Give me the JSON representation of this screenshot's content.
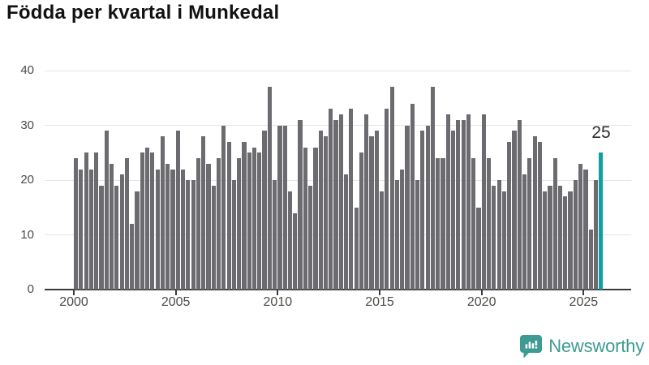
{
  "title": "Födda per kvartal i Munkedal",
  "annotation": {
    "label": "25"
  },
  "chart_data": {
    "type": "bar",
    "title": "Födda per kvartal i Munkedal",
    "x_start": "2000 Q1",
    "x_end": "2025 Q4",
    "x_frequency": "quarterly",
    "values": [
      24,
      22,
      25,
      22,
      25,
      19,
      29,
      23,
      19,
      21,
      24,
      12,
      18,
      25,
      26,
      25,
      22,
      28,
      23,
      22,
      29,
      22,
      20,
      20,
      24,
      28,
      23,
      19,
      24,
      30,
      27,
      20,
      24,
      27,
      25,
      26,
      25,
      29,
      37,
      20,
      30,
      30,
      18,
      14,
      31,
      26,
      19,
      26,
      29,
      28,
      33,
      31,
      32,
      21,
      33,
      15,
      25,
      32,
      28,
      29,
      18,
      33,
      37,
      20,
      22,
      30,
      34,
      20,
      29,
      30,
      37,
      24,
      24,
      32,
      29,
      31,
      31,
      32,
      24,
      15,
      32,
      24,
      19,
      20,
      18,
      27,
      29,
      31,
      21,
      24,
      28,
      27,
      18,
      19,
      24,
      19,
      17,
      18,
      20,
      23,
      22,
      11,
      20,
      25
    ],
    "highlight_index": 103,
    "highlight_label": "25",
    "xticks": [
      "2000",
      "2005",
      "2010",
      "2015",
      "2020",
      "2025"
    ],
    "yticks": [
      0,
      10,
      20,
      30,
      40
    ],
    "ylim": [
      0,
      40
    ],
    "grid": true,
    "bar_color": "#6c6b70",
    "highlight_color": "#11a0a0",
    "axis_color": "#3a3a3e",
    "gridline_color": "#e4e4e4",
    "label_color": "#4b4b4b"
  },
  "branding": {
    "logo_text": "Newsworthy",
    "logo_color": "#3e9b94"
  }
}
